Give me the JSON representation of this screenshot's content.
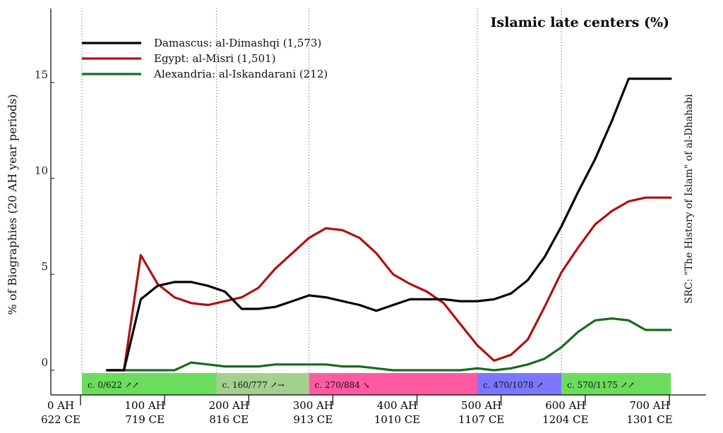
{
  "chart_data": {
    "type": "line",
    "title": "Islamic late centers (%)",
    "ylabel": "% of Biographies (20 AH year periods)",
    "source": "SRC: \"The History of Islam\" of al-Dhahabi",
    "xlim": [
      0,
      740
    ],
    "ylim": [
      -1.3,
      18.5
    ],
    "yticks": [
      0,
      5,
      10,
      15
    ],
    "xticks": [
      {
        "ah": 0,
        "ah_label": "0 AH",
        "ce_label": "622 CE"
      },
      {
        "ah": 100,
        "ah_label": "100 AH",
        "ce_label": "719 CE"
      },
      {
        "ah": 200,
        "ah_label": "200 AH",
        "ce_label": "816 CE"
      },
      {
        "ah": 300,
        "ah_label": "300 AH",
        "ce_label": "913 CE"
      },
      {
        "ah": 400,
        "ah_label": "400 AH",
        "ce_label": "1010 CE"
      },
      {
        "ah": 500,
        "ah_label": "500 AH",
        "ce_label": "1107 CE"
      },
      {
        "ah": 600,
        "ah_label": "600 AH",
        "ce_label": "1204 CE"
      },
      {
        "ah": 700,
        "ah_label": "700 AH",
        "ce_label": "1301 CE"
      }
    ],
    "gridlines_x": [
      0,
      160,
      270,
      470,
      570
    ],
    "periods": [
      {
        "start": 0,
        "end": 160,
        "label": "c. 0/622 ↗↗",
        "color": "#6cdc5e"
      },
      {
        "start": 160,
        "end": 270,
        "label": "c. 160/777 ↗→",
        "color": "#a3cf8f"
      },
      {
        "start": 270,
        "end": 470,
        "label": "c. 270/884 ↘",
        "color": "#ff5aa2"
      },
      {
        "start": 470,
        "end": 570,
        "label": "c. 470/1078 ↗",
        "color": "#7b78ff"
      },
      {
        "start": 570,
        "end": 700,
        "label": "c. 570/1175 ↗↗",
        "color": "#6cdc5e"
      }
    ],
    "x": [
      30,
      50,
      70,
      90,
      110,
      130,
      150,
      170,
      190,
      210,
      230,
      250,
      270,
      290,
      310,
      330,
      350,
      370,
      390,
      410,
      430,
      450,
      470,
      490,
      510,
      530,
      550,
      570,
      590,
      610,
      630,
      650,
      670,
      690,
      700
    ],
    "series": [
      {
        "name": "Damascus: al-Dimashqi (1,573)",
        "color": "#000000",
        "values": [
          0,
          0,
          3.7,
          4.4,
          4.6,
          4.6,
          4.4,
          4.1,
          3.2,
          3.2,
          3.3,
          3.6,
          3.9,
          3.8,
          3.6,
          3.4,
          3.1,
          3.4,
          3.7,
          3.7,
          3.7,
          3.6,
          3.6,
          3.7,
          4.0,
          4.7,
          5.9,
          7.5,
          9.3,
          11.0,
          13.0,
          15.2,
          15.2,
          15.2,
          15.2
        ]
      },
      {
        "name": "Egypt: al-Misri (1,501)",
        "color": "#b01010",
        "values": [
          0,
          0,
          6.0,
          4.5,
          3.8,
          3.5,
          3.4,
          3.6,
          3.8,
          4.3,
          5.3,
          6.1,
          6.9,
          7.4,
          7.3,
          6.9,
          6.1,
          5.0,
          4.5,
          4.1,
          3.5,
          2.4,
          1.3,
          0.5,
          0.8,
          1.6,
          3.3,
          5.1,
          6.4,
          7.6,
          8.3,
          8.8,
          9.0,
          9.0,
          9.0
        ]
      },
      {
        "name": "Alexandria: al-Iskandarani (212)",
        "color": "#1a6a1a",
        "values": [
          0,
          0,
          0,
          0,
          0,
          0.4,
          0.3,
          0.2,
          0.2,
          0.2,
          0.3,
          0.3,
          0.3,
          0.3,
          0.2,
          0.2,
          0.1,
          0,
          0,
          0,
          0,
          0,
          0.1,
          0,
          0.1,
          0.3,
          0.6,
          1.2,
          2.0,
          2.6,
          2.7,
          2.6,
          2.1,
          2.1,
          2.1
        ]
      }
    ],
    "grid": false,
    "legend_position": "top-left"
  }
}
